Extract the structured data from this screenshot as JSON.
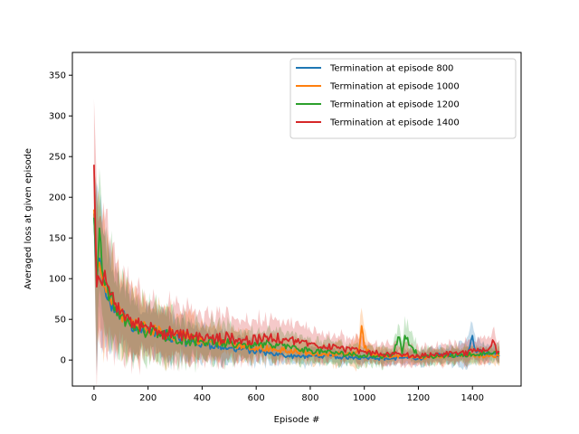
{
  "chart_data": {
    "type": "line",
    "title": "",
    "xlabel": "Episode #",
    "ylabel": "Averaged loss at given episode",
    "xlim": [
      -80,
      1580
    ],
    "ylim": [
      -32,
      378
    ],
    "xticks": [
      0,
      200,
      400,
      600,
      800,
      1000,
      1200,
      1400
    ],
    "yticks": [
      0,
      50,
      100,
      150,
      200,
      250,
      300,
      350
    ],
    "grid": false,
    "legend_position": "upper right",
    "series": [
      {
        "name": "Termination at episode 800",
        "color": "#1f77b4",
        "x": [
          0,
          10,
          20,
          30,
          40,
          60,
          80,
          100,
          130,
          160,
          200,
          250,
          300,
          350,
          400,
          450,
          500,
          550,
          600,
          650,
          700,
          750,
          800,
          850,
          900,
          950,
          1000,
          1050,
          1100,
          1150,
          1200,
          1250,
          1300,
          1350,
          1380,
          1400,
          1410,
          1450,
          1500
        ],
        "y": [
          180,
          100,
          125,
          95,
          88,
          70,
          60,
          55,
          45,
          40,
          35,
          30,
          28,
          22,
          20,
          18,
          15,
          14,
          10,
          8,
          6,
          4,
          5,
          5,
          4,
          3,
          3,
          2,
          2,
          3,
          2,
          5,
          6,
          7,
          8,
          30,
          12,
          8,
          6
        ],
        "band": [
          30,
          85,
          80,
          70,
          60,
          50,
          45,
          40,
          35,
          32,
          30,
          28,
          25,
          22,
          20,
          18,
          16,
          15,
          14,
          12,
          10,
          10,
          10,
          9,
          9,
          8,
          8,
          8,
          8,
          8,
          8,
          9,
          10,
          12,
          15,
          25,
          15,
          10,
          8
        ]
      },
      {
        "name": "Termination at episode 1000",
        "color": "#ff7f0e",
        "x": [
          0,
          10,
          20,
          30,
          40,
          60,
          80,
          100,
          130,
          160,
          200,
          250,
          300,
          350,
          400,
          450,
          500,
          550,
          600,
          650,
          700,
          750,
          800,
          850,
          900,
          950,
          980,
          990,
          1000,
          1020,
          1050,
          1100,
          1150,
          1200,
          1250,
          1300,
          1350,
          1400,
          1450,
          1500
        ],
        "y": [
          185,
          105,
          120,
          100,
          90,
          75,
          62,
          55,
          48,
          42,
          38,
          33,
          30,
          27,
          24,
          22,
          20,
          18,
          16,
          14,
          12,
          10,
          9,
          8,
          7,
          6,
          10,
          42,
          15,
          8,
          5,
          4,
          5,
          3,
          4,
          5,
          6,
          6,
          5,
          5
        ],
        "band": [
          35,
          90,
          85,
          75,
          65,
          55,
          48,
          42,
          38,
          35,
          32,
          30,
          28,
          25,
          22,
          20,
          18,
          17,
          16,
          15,
          14,
          13,
          12,
          12,
          12,
          12,
          20,
          35,
          18,
          12,
          10,
          9,
          9,
          8,
          8,
          9,
          9,
          10,
          9,
          9
        ]
      },
      {
        "name": "Termination at episode 1200",
        "color": "#2ca02c",
        "x": [
          0,
          10,
          20,
          30,
          40,
          60,
          80,
          100,
          130,
          160,
          200,
          250,
          300,
          350,
          400,
          450,
          500,
          550,
          600,
          650,
          700,
          750,
          800,
          850,
          900,
          950,
          1000,
          1050,
          1100,
          1130,
          1140,
          1150,
          1200,
          1250,
          1300,
          1350,
          1400,
          1450,
          1500
        ],
        "y": [
          175,
          95,
          162,
          110,
          92,
          78,
          65,
          55,
          46,
          40,
          36,
          32,
          28,
          25,
          23,
          22,
          20,
          19,
          18,
          20,
          18,
          14,
          12,
          10,
          9,
          7,
          6,
          5,
          5,
          28,
          8,
          30,
          5,
          4,
          5,
          6,
          7,
          8,
          8
        ],
        "band": [
          40,
          95,
          90,
          80,
          70,
          58,
          50,
          44,
          40,
          36,
          33,
          30,
          28,
          26,
          24,
          22,
          20,
          19,
          18,
          17,
          16,
          15,
          14,
          13,
          13,
          12,
          12,
          11,
          11,
          20,
          12,
          20,
          10,
          9,
          9,
          10,
          10,
          10,
          10
        ]
      },
      {
        "name": "Termination at episode 1400",
        "color": "#d62728",
        "x": [
          0,
          10,
          20,
          30,
          40,
          60,
          80,
          100,
          130,
          160,
          200,
          250,
          300,
          350,
          400,
          450,
          500,
          550,
          600,
          650,
          700,
          750,
          800,
          850,
          900,
          950,
          1000,
          1050,
          1100,
          1150,
          1200,
          1250,
          1300,
          1350,
          1400,
          1450,
          1480,
          1490,
          1500
        ],
        "y": [
          240,
          90,
          100,
          92,
          110,
          80,
          70,
          60,
          50,
          45,
          40,
          35,
          32,
          30,
          28,
          26,
          28,
          25,
          24,
          28,
          26,
          22,
          20,
          18,
          15,
          12,
          10,
          8,
          7,
          6,
          5,
          6,
          7,
          8,
          10,
          12,
          22,
          8,
          10
        ],
        "band": [
          60,
          100,
          95,
          85,
          75,
          62,
          55,
          48,
          44,
          40,
          37,
          34,
          32,
          30,
          28,
          27,
          26,
          25,
          24,
          23,
          22,
          20,
          18,
          17,
          16,
          15,
          14,
          13,
          12,
          12,
          11,
          11,
          12,
          12,
          14,
          15,
          20,
          14,
          12
        ]
      }
    ]
  }
}
